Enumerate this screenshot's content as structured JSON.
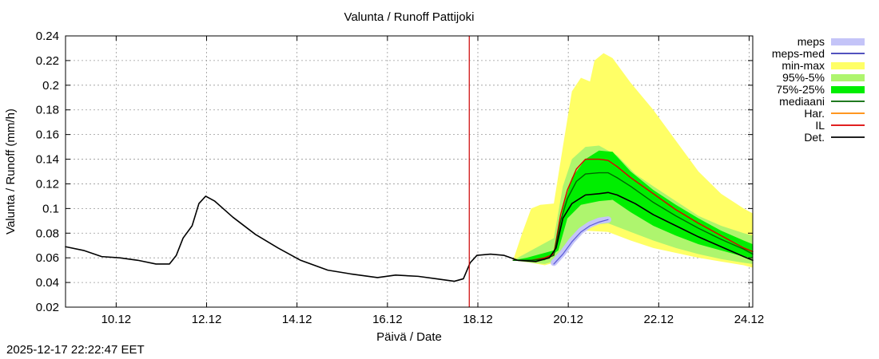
{
  "chart_data": {
    "type": "area",
    "title": "Valunta / Runoff  Pattijoki",
    "xlabel": "Päivä / Date",
    "ylabel": "Valunta / Runoff (mm/h)",
    "xlim": [
      9.0,
      24.2
    ],
    "ylim": [
      0.02,
      0.24
    ],
    "x_unit": "day of December 2025",
    "grid": true,
    "legend_position": "top-right, outside plot",
    "x_ticks": [
      {
        "x": 10.12,
        "label": "10.12"
      },
      {
        "x": 12.12,
        "label": "12.12"
      },
      {
        "x": 14.12,
        "label": "14.12"
      },
      {
        "x": 16.12,
        "label": "16.12"
      },
      {
        "x": 18.12,
        "label": "18.12"
      },
      {
        "x": 20.12,
        "label": "20.12"
      },
      {
        "x": 22.12,
        "label": "22.12"
      },
      {
        "x": 24.12,
        "label": "24.12"
      }
    ],
    "y_ticks": [
      {
        "y": 0.02,
        "label": "0.02"
      },
      {
        "y": 0.04,
        "label": "0.04"
      },
      {
        "y": 0.06,
        "label": "0.06"
      },
      {
        "y": 0.08,
        "label": "0.08"
      },
      {
        "y": 0.1,
        "label": "0.1"
      },
      {
        "y": 0.12,
        "label": "0.12"
      },
      {
        "y": 0.14,
        "label": "0.14"
      },
      {
        "y": 0.16,
        "label": "0.16"
      },
      {
        "y": 0.18,
        "label": "0.18"
      },
      {
        "y": 0.2,
        "label": "0.2"
      },
      {
        "y": 0.22,
        "label": "0.22"
      },
      {
        "y": 0.24,
        "label": "0.24"
      }
    ],
    "forecast_start_line": {
      "x": 17.93,
      "color": "#cc0000"
    },
    "legend": [
      {
        "label": "meps",
        "kind": "band",
        "color": "#c4c4f8"
      },
      {
        "label": "meps-med",
        "kind": "line",
        "color": "#3a3ab4"
      },
      {
        "label": "min-max",
        "kind": "band",
        "color": "#ffff66"
      },
      {
        "label": "95%-5%",
        "kind": "band",
        "color": "#aef56e"
      },
      {
        "label": "75%-25%",
        "kind": "band",
        "color": "#00ee00"
      },
      {
        "label": "mediaani",
        "kind": "line",
        "color": "#006600"
      },
      {
        "label": "Har.",
        "kind": "line",
        "color": "#ff8800"
      },
      {
        "label": "IL",
        "kind": "line",
        "color": "#dd0000"
      },
      {
        "label": "Det.",
        "kind": "line",
        "color": "#000000"
      }
    ],
    "bands": [
      {
        "name": "min-max",
        "color": "#ffff66",
        "upper": [
          [
            18.9,
            0.058
          ],
          [
            19.1,
            0.08
          ],
          [
            19.3,
            0.1
          ],
          [
            19.5,
            0.103
          ],
          [
            19.8,
            0.104
          ],
          [
            20.0,
            0.15
          ],
          [
            20.2,
            0.195
          ],
          [
            20.4,
            0.206
          ],
          [
            20.6,
            0.203
          ],
          [
            20.7,
            0.22
          ],
          [
            20.9,
            0.226
          ],
          [
            21.1,
            0.222
          ],
          [
            21.5,
            0.202
          ],
          [
            22.0,
            0.18
          ],
          [
            22.5,
            0.155
          ],
          [
            23.0,
            0.13
          ],
          [
            23.5,
            0.112
          ],
          [
            24.0,
            0.1
          ],
          [
            24.2,
            0.096
          ]
        ],
        "lower": [
          [
            18.9,
            0.058
          ],
          [
            19.3,
            0.056
          ],
          [
            19.6,
            0.054
          ],
          [
            19.9,
            0.057
          ],
          [
            20.1,
            0.07
          ],
          [
            20.5,
            0.082
          ],
          [
            21.0,
            0.081
          ],
          [
            21.5,
            0.074
          ],
          [
            22.0,
            0.068
          ],
          [
            22.5,
            0.064
          ],
          [
            23.0,
            0.06
          ],
          [
            23.5,
            0.057
          ],
          [
            24.0,
            0.054
          ],
          [
            24.2,
            0.052
          ]
        ]
      },
      {
        "name": "95%-5%",
        "color": "#aef56e",
        "upper": [
          [
            18.9,
            0.058
          ],
          [
            19.2,
            0.064
          ],
          [
            19.5,
            0.07
          ],
          [
            19.8,
            0.076
          ],
          [
            20.0,
            0.118
          ],
          [
            20.2,
            0.14
          ],
          [
            20.5,
            0.15
          ],
          [
            20.8,
            0.151
          ],
          [
            21.2,
            0.143
          ],
          [
            21.6,
            0.128
          ],
          [
            22.0,
            0.118
          ],
          [
            22.5,
            0.106
          ],
          [
            23.0,
            0.094
          ],
          [
            23.5,
            0.086
          ],
          [
            24.0,
            0.08
          ],
          [
            24.2,
            0.078
          ]
        ],
        "lower": [
          [
            18.9,
            0.058
          ],
          [
            19.3,
            0.056
          ],
          [
            19.6,
            0.055
          ],
          [
            19.9,
            0.058
          ],
          [
            20.1,
            0.072
          ],
          [
            20.5,
            0.086
          ],
          [
            21.0,
            0.088
          ],
          [
            21.5,
            0.081
          ],
          [
            22.0,
            0.074
          ],
          [
            22.5,
            0.068
          ],
          [
            23.0,
            0.063
          ],
          [
            23.5,
            0.059
          ],
          [
            24.0,
            0.056
          ],
          [
            24.2,
            0.055
          ]
        ]
      },
      {
        "name": "75%-25%",
        "color": "#00ee00",
        "upper": [
          [
            18.9,
            0.058
          ],
          [
            19.2,
            0.06
          ],
          [
            19.5,
            0.063
          ],
          [
            19.8,
            0.066
          ],
          [
            20.0,
            0.1
          ],
          [
            20.2,
            0.125
          ],
          [
            20.5,
            0.14
          ],
          [
            20.8,
            0.147
          ],
          [
            21.1,
            0.146
          ],
          [
            21.5,
            0.13
          ],
          [
            22.0,
            0.115
          ],
          [
            22.5,
            0.103
          ],
          [
            23.0,
            0.092
          ],
          [
            23.5,
            0.082
          ],
          [
            24.0,
            0.074
          ],
          [
            24.2,
            0.071
          ]
        ],
        "lower": [
          [
            18.9,
            0.058
          ],
          [
            19.3,
            0.057
          ],
          [
            19.6,
            0.058
          ],
          [
            19.9,
            0.066
          ],
          [
            20.1,
            0.092
          ],
          [
            20.4,
            0.103
          ],
          [
            20.8,
            0.106
          ],
          [
            21.1,
            0.107
          ],
          [
            21.5,
            0.097
          ],
          [
            22.0,
            0.086
          ],
          [
            22.5,
            0.078
          ],
          [
            23.0,
            0.071
          ],
          [
            23.5,
            0.066
          ],
          [
            24.0,
            0.061
          ],
          [
            24.2,
            0.06
          ]
        ]
      }
    ],
    "series": [
      {
        "name": "meps",
        "kind": "band_line",
        "color": "#c4c4f8",
        "width": 8,
        "points": [
          [
            19.8,
            0.056
          ],
          [
            20.0,
            0.064
          ],
          [
            20.2,
            0.074
          ],
          [
            20.4,
            0.082
          ],
          [
            20.6,
            0.087
          ],
          [
            20.8,
            0.09
          ],
          [
            21.0,
            0.091
          ]
        ]
      },
      {
        "name": "meps-med",
        "color": "#5a5ad8",
        "width": 1.2,
        "points": [
          [
            19.8,
            0.055
          ],
          [
            20.0,
            0.063
          ],
          [
            20.2,
            0.073
          ],
          [
            20.4,
            0.081
          ],
          [
            20.6,
            0.086
          ],
          [
            20.8,
            0.089
          ],
          [
            21.0,
            0.091
          ]
        ]
      },
      {
        "name": "IL",
        "color": "#dd0000",
        "width": 1.4,
        "points": [
          [
            18.9,
            0.058
          ],
          [
            19.3,
            0.058
          ],
          [
            19.6,
            0.06
          ],
          [
            19.8,
            0.063
          ],
          [
            19.95,
            0.095
          ],
          [
            20.1,
            0.115
          ],
          [
            20.3,
            0.132
          ],
          [
            20.5,
            0.14
          ],
          [
            20.8,
            0.14
          ],
          [
            21.0,
            0.139
          ],
          [
            21.2,
            0.134
          ],
          [
            21.5,
            0.125
          ],
          [
            22.0,
            0.112
          ],
          [
            22.5,
            0.099
          ],
          [
            23.0,
            0.088
          ],
          [
            23.5,
            0.078
          ],
          [
            24.0,
            0.068
          ],
          [
            24.2,
            0.065
          ]
        ]
      },
      {
        "name": "mediaani",
        "color": "#006600",
        "width": 1.4,
        "points": [
          [
            18.9,
            0.058
          ],
          [
            19.3,
            0.058
          ],
          [
            19.6,
            0.059
          ],
          [
            19.8,
            0.062
          ],
          [
            19.95,
            0.09
          ],
          [
            20.1,
            0.108
          ],
          [
            20.3,
            0.122
          ],
          [
            20.5,
            0.128
          ],
          [
            20.8,
            0.129
          ],
          [
            21.0,
            0.129
          ],
          [
            21.2,
            0.125
          ],
          [
            21.5,
            0.118
          ],
          [
            22.0,
            0.105
          ],
          [
            22.5,
            0.094
          ],
          [
            23.0,
            0.084
          ],
          [
            23.5,
            0.075
          ],
          [
            24.0,
            0.067
          ],
          [
            24.2,
            0.063
          ]
        ]
      },
      {
        "name": "Det.",
        "color": "#000000",
        "width": 1.6,
        "points": [
          [
            9.0,
            0.069
          ],
          [
            9.4,
            0.066
          ],
          [
            9.8,
            0.061
          ],
          [
            10.2,
            0.06
          ],
          [
            10.6,
            0.058
          ],
          [
            11.0,
            0.055
          ],
          [
            11.3,
            0.055
          ],
          [
            11.45,
            0.062
          ],
          [
            11.6,
            0.076
          ],
          [
            11.8,
            0.086
          ],
          [
            11.95,
            0.104
          ],
          [
            12.1,
            0.11
          ],
          [
            12.3,
            0.106
          ],
          [
            12.7,
            0.093
          ],
          [
            13.2,
            0.079
          ],
          [
            13.7,
            0.068
          ],
          [
            14.2,
            0.058
          ],
          [
            14.8,
            0.05
          ],
          [
            15.3,
            0.047
          ],
          [
            15.9,
            0.044
          ],
          [
            16.3,
            0.046
          ],
          [
            16.8,
            0.045
          ],
          [
            17.2,
            0.043
          ],
          [
            17.6,
            0.041
          ],
          [
            17.8,
            0.043
          ],
          [
            17.95,
            0.056
          ],
          [
            18.1,
            0.062
          ],
          [
            18.4,
            0.063
          ],
          [
            18.7,
            0.062
          ],
          [
            19.0,
            0.058
          ],
          [
            19.4,
            0.057
          ],
          [
            19.7,
            0.06
          ],
          [
            19.85,
            0.068
          ],
          [
            20.0,
            0.092
          ],
          [
            20.2,
            0.104
          ],
          [
            20.5,
            0.111
          ],
          [
            20.8,
            0.112
          ],
          [
            21.0,
            0.113
          ],
          [
            21.2,
            0.111
          ],
          [
            21.6,
            0.104
          ],
          [
            22.0,
            0.095
          ],
          [
            22.5,
            0.086
          ],
          [
            23.0,
            0.077
          ],
          [
            23.5,
            0.069
          ],
          [
            24.0,
            0.061
          ],
          [
            24.2,
            0.058
          ]
        ]
      }
    ]
  },
  "footer": {
    "timestamp": "2025-12-17 22:22:47 EET"
  }
}
